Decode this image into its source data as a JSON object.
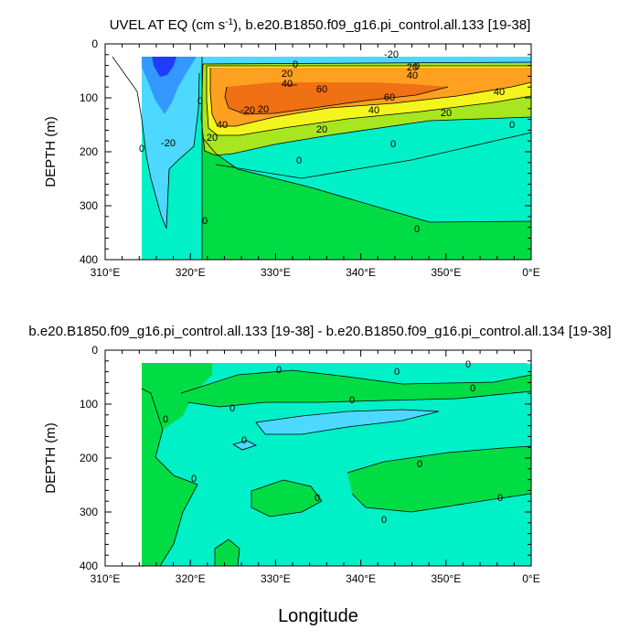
{
  "chart_data": [
    {
      "type": "heatmap",
      "title": "UVEL AT EQ (cm s",
      "title_sup": "-1",
      "title_rest": "), b.e20.B1850.f09_g16.pi_control.all.133 [19-38]",
      "ylabel": "DEPTH (m)",
      "x_ticks": [
        "310°E",
        "320°E",
        "330°E",
        "340°E",
        "350°E",
        "0°E"
      ],
      "y_ticks": [
        "0",
        "100",
        "200",
        "300",
        "400"
      ],
      "xlim": [
        310,
        360
      ],
      "ylim": [
        0,
        400
      ],
      "contour_labels": [
        "-20",
        "0",
        "20",
        "40",
        "60",
        "20",
        "40",
        "60",
        "40",
        "20",
        "0",
        "-20",
        "0",
        "20",
        "0",
        "0",
        "0",
        "0",
        "40",
        "20",
        "0",
        "-20",
        "20",
        "40",
        "0"
      ],
      "colors": {
        "strong_west": "#1e3cff",
        "west": "#3399ff",
        "weak_west": "#4dd9ff",
        "near_zero": "#00f0c8",
        "weak_east": "#00dd44",
        "east": "#a8e620",
        "mid_east": "#f5f51e",
        "strong_east": "#ffa020",
        "core": "#f07014"
      }
    },
    {
      "type": "heatmap",
      "title": "b.e20.B1850.f09_g16.pi_control.all.133 [19-38] - b.e20.B1850.f09_g16.pi_control.all.134 [19-38]",
      "ylabel": "DEPTH (m)",
      "xlabel": "Longitude",
      "x_ticks": [
        "310°E",
        "320°E",
        "330°E",
        "340°E",
        "350°E",
        "0°E"
      ],
      "y_ticks": [
        "0",
        "100",
        "200",
        "300",
        "400"
      ],
      "xlim": [
        310,
        360
      ],
      "ylim": [
        0,
        400
      ],
      "contour_labels": [
        "0",
        "0",
        "0",
        "0",
        "0",
        "0",
        "0",
        "0",
        "0",
        "0",
        "0",
        "0",
        "0"
      ],
      "colors": {
        "negative": "#4dd9ff",
        "near_zero": "#00f0c8",
        "positive": "#00dd44"
      }
    }
  ]
}
